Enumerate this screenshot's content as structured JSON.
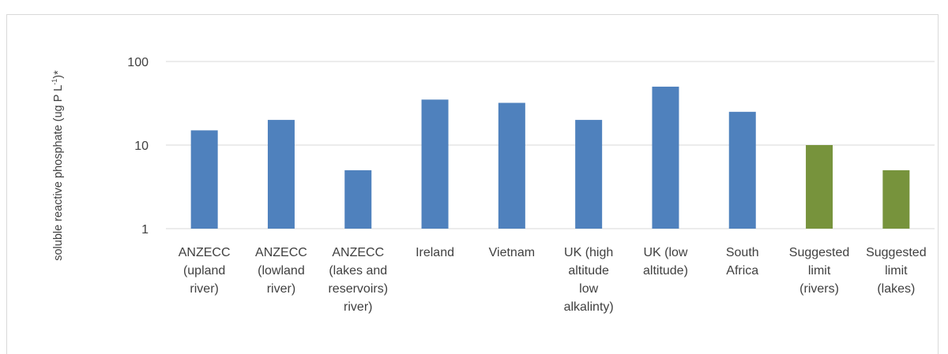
{
  "chart_data": {
    "type": "bar",
    "ylabel": "soluble reactive phosphate (ug P L⁻¹)*",
    "ylabel_parts": {
      "main": "soluble reactive phosphate (ug P L",
      "sup": "-1",
      "end": ")*"
    },
    "yscale": "log",
    "ylim": [
      1,
      100
    ],
    "yticks": [
      1,
      10,
      100
    ],
    "ytick_labels": [
      "1",
      "10",
      "100"
    ],
    "grid": true,
    "categories": [
      [
        "ANZECC",
        "(upland",
        "river)"
      ],
      [
        "ANZECC",
        "(lowland",
        "river)"
      ],
      [
        "ANZECC",
        "(lakes and",
        "reservoirs)",
        "river)"
      ],
      [
        "Ireland"
      ],
      [
        "Vietnam"
      ],
      [
        "UK (high",
        "altitude",
        "low",
        "alkalinty)"
      ],
      [
        "UK (low",
        "altitude)"
      ],
      [
        "South",
        "Africa"
      ],
      [
        "Suggested",
        "limit",
        "(rivers)"
      ],
      [
        "Suggested",
        "limit",
        "(lakes)"
      ]
    ],
    "values": [
      15,
      20,
      5,
      35,
      32,
      20,
      50,
      25,
      10,
      5
    ],
    "colors": [
      "#4f81bd",
      "#4f81bd",
      "#4f81bd",
      "#4f81bd",
      "#4f81bd",
      "#4f81bd",
      "#4f81bd",
      "#4f81bd",
      "#77933c",
      "#77933c"
    ]
  }
}
